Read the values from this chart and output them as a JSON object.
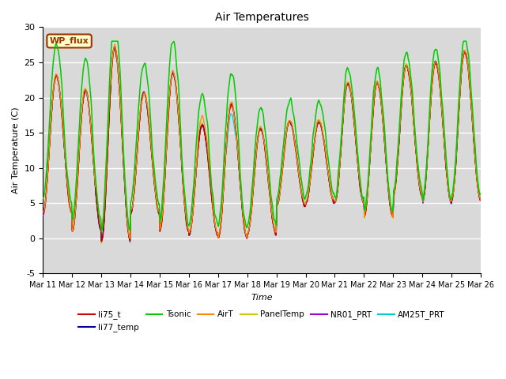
{
  "title": "Air Temperatures",
  "xlabel": "Time",
  "ylabel": "Air Temperature (C)",
  "ylim": [
    -5,
    30
  ],
  "xtick_labels": [
    "Mar 11",
    "Mar 12",
    "Mar 13",
    "Mar 14",
    "Mar 15",
    "Mar 16",
    "Mar 17",
    "Mar 18",
    "Mar 19",
    "Mar 20",
    "Mar 21",
    "Mar 22",
    "Mar 23",
    "Mar 24",
    "Mar 25",
    "Mar 26"
  ],
  "plot_bg_color": "#d9d9d9",
  "fig_bg_color": "#ffffff",
  "series_colors": {
    "li75_t": "#cc0000",
    "li77_temp": "#000099",
    "Tsonic": "#00cc00",
    "AirT": "#ff8800",
    "PanelTemp": "#cccc00",
    "NR01_PRT": "#9900cc",
    "AM25T_PRT": "#00cccc"
  },
  "grid_color": "#ffffff",
  "wp_flux_box": {
    "text": "WP_flux",
    "facecolor": "#ffffcc",
    "edgecolor": "#993300",
    "textcolor": "#993300"
  }
}
